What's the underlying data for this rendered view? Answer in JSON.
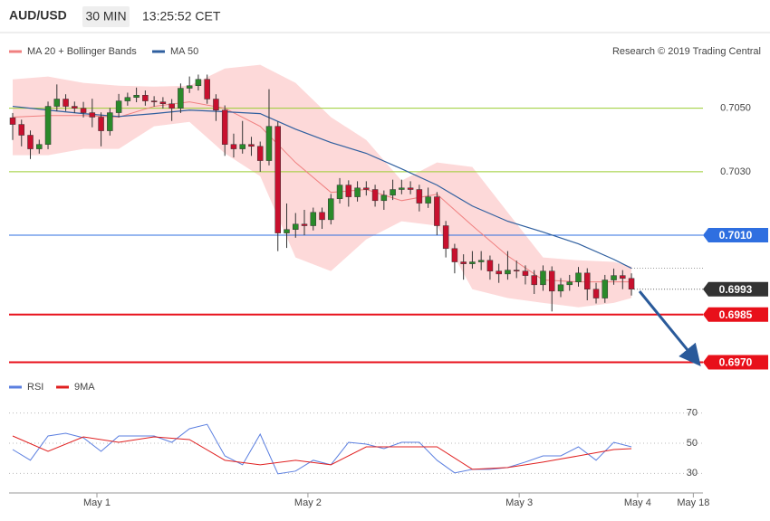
{
  "header": {
    "symbol": "AUD/USD",
    "interval": "30 MIN",
    "time": "13:25:52 CET"
  },
  "chart_data": [
    {
      "type": "candlestick",
      "source": "Research © 2019 Trading Central",
      "candles": {
        "open": [
          0.7047,
          0.70449,
          0.70415,
          0.70372,
          0.70386,
          0.70506,
          0.70529,
          0.70506,
          0.705,
          0.70486,
          0.70472,
          0.70429,
          0.70486,
          0.70523,
          0.70534,
          0.70541,
          0.70523,
          0.7052,
          0.70514,
          0.705,
          0.70563,
          0.70571,
          0.70591,
          0.70529,
          0.70494,
          0.70386,
          0.70372,
          0.70386,
          0.7038,
          0.70335,
          0.70443,
          0.70107,
          0.70118,
          0.70135,
          0.7013,
          0.70172,
          0.70149,
          0.70215,
          0.70258,
          0.70221,
          0.70249,
          0.70244,
          0.70209,
          0.70226,
          0.70244,
          0.70249,
          0.70244,
          0.70201,
          0.70221,
          0.7013,
          0.70058,
          0.70016,
          0.7001,
          0.70016,
          0.70021,
          0.69987,
          0.69978,
          0.6999,
          0.69987,
          0.69973,
          0.69944,
          0.69987,
          0.69924,
          0.69944,
          0.69953,
          0.69981,
          0.6993,
          0.69902,
          0.69959,
          0.69973,
          0.69964
        ],
        "high": [
          0.70485,
          0.70464,
          0.7043,
          0.70401,
          0.70521,
          0.70575,
          0.70544,
          0.70521,
          0.7052,
          0.7053,
          0.70487,
          0.70501,
          0.70545,
          0.70549,
          0.70565,
          0.70556,
          0.70538,
          0.70535,
          0.70529,
          0.70578,
          0.706,
          0.70606,
          0.70606,
          0.70544,
          0.70509,
          0.7042,
          0.7046,
          0.7041,
          0.70395,
          0.7056,
          0.70458,
          0.702,
          0.7017,
          0.7018,
          0.70187,
          0.70187,
          0.7023,
          0.7028,
          0.70273,
          0.7027,
          0.7027,
          0.70259,
          0.70241,
          0.70275,
          0.70275,
          0.7027,
          0.70259,
          0.7025,
          0.70236,
          0.70145,
          0.70073,
          0.7004,
          0.7005,
          0.7005,
          0.70036,
          0.7001,
          0.7005,
          0.7002,
          0.70005,
          0.6999,
          0.70005,
          0.70002,
          0.69965,
          0.69975,
          0.7,
          0.69996,
          0.6995,
          0.69975,
          0.69995,
          0.6999,
          0.6998
        ],
        "low": [
          0.704,
          0.7038,
          0.7034,
          0.70357,
          0.70371,
          0.70491,
          0.70491,
          0.70485,
          0.70471,
          0.7044,
          0.7038,
          0.70414,
          0.70471,
          0.70508,
          0.70519,
          0.70508,
          0.70505,
          0.70499,
          0.7046,
          0.70485,
          0.70548,
          0.70556,
          0.70514,
          0.7046,
          0.7035,
          0.70345,
          0.70357,
          0.7035,
          0.703,
          0.7032,
          0.7005,
          0.7006,
          0.70092,
          0.701,
          0.70115,
          0.7012,
          0.70134,
          0.702,
          0.7019,
          0.70206,
          0.70225,
          0.7019,
          0.7018,
          0.70211,
          0.70229,
          0.70229,
          0.70175,
          0.70186,
          0.701,
          0.7003,
          0.6998,
          0.6996,
          0.69995,
          0.6999,
          0.6996,
          0.6995,
          0.6996,
          0.69965,
          0.69945,
          0.69915,
          0.69925,
          0.6986,
          0.69905,
          0.69925,
          0.69938,
          0.69895,
          0.69885,
          0.69887,
          0.69944,
          0.6993,
          0.6991
        ],
        "close": [
          0.70449,
          0.70415,
          0.70372,
          0.70386,
          0.70506,
          0.70529,
          0.70506,
          0.705,
          0.70486,
          0.70472,
          0.70429,
          0.70486,
          0.70523,
          0.70534,
          0.70541,
          0.70523,
          0.7052,
          0.70514,
          0.705,
          0.70563,
          0.70571,
          0.70591,
          0.70529,
          0.70494,
          0.70386,
          0.70372,
          0.70386,
          0.7038,
          0.70335,
          0.70443,
          0.70107,
          0.70118,
          0.70135,
          0.7013,
          0.70172,
          0.70149,
          0.70215,
          0.70258,
          0.70221,
          0.70249,
          0.70244,
          0.70209,
          0.70226,
          0.70244,
          0.70249,
          0.70244,
          0.70201,
          0.70221,
          0.7013,
          0.70058,
          0.70016,
          0.7001,
          0.70016,
          0.70021,
          0.69987,
          0.69978,
          0.6999,
          0.69987,
          0.69973,
          0.69944,
          0.69987,
          0.69924,
          0.69944,
          0.69953,
          0.69981,
          0.6993,
          0.69902,
          0.69959,
          0.69973,
          0.69964,
          0.6993
        ],
        "up_color": "#2a8a2a",
        "down_color": "#c8102e"
      },
      "series": [
        {
          "name": "MA 20 + Bollinger Bands",
          "color": "#f08080",
          "band_color": "#fdd9d9",
          "x": [
            0,
            4,
            8,
            12,
            16,
            20,
            24,
            28,
            32,
            36,
            40,
            44,
            48,
            52,
            56,
            60,
            64,
            68,
            70
          ],
          "upper": [
            0.70591,
            0.706,
            0.7058,
            0.70571,
            0.70568,
            0.70571,
            0.70625,
            0.70637,
            0.7058,
            0.70472,
            0.704,
            0.70272,
            0.70329,
            0.70315,
            0.70172,
            0.7003,
            0.70021,
            0.70016,
            0.70001
          ],
          "values": [
            0.70472,
            0.70477,
            0.70477,
            0.70472,
            0.70506,
            0.7052,
            0.705,
            0.70443,
            0.70329,
            0.70235,
            0.70244,
            0.70209,
            0.70229,
            0.7013,
            0.70035,
            0.69959,
            0.69953,
            0.69953,
            0.69953
          ],
          "lower": [
            0.70352,
            0.70352,
            0.70372,
            0.70372,
            0.70443,
            0.70457,
            0.70358,
            0.70286,
            0.7003,
            0.69987,
            0.70087,
            0.70144,
            0.7013,
            0.6993,
            0.69902,
            0.69887,
            0.69873,
            0.69887,
            0.69902
          ]
        },
        {
          "name": "MA 50",
          "color": "#2f5f9f",
          "x": [
            0,
            4,
            8,
            12,
            16,
            20,
            24,
            28,
            32,
            36,
            40,
            44,
            48,
            52,
            56,
            60,
            64,
            68,
            70
          ],
          "values": [
            0.70506,
            0.70494,
            0.70483,
            0.70474,
            0.70483,
            0.70494,
            0.70489,
            0.70483,
            0.70434,
            0.70392,
            0.70358,
            0.70309,
            0.70258,
            0.70192,
            0.70144,
            0.7011,
            0.70073,
            0.70024,
            0.69996
          ]
        }
      ],
      "levels": [
        {
          "value": 0.705,
          "label": "0.7050",
          "color": "#9acd32",
          "kind": "text"
        },
        {
          "value": 0.703,
          "label": "0.7030",
          "color": "#9acd32",
          "kind": "text"
        },
        {
          "value": 0.701,
          "label": "0.7010",
          "color": "#2f6fe0",
          "kind": "tag"
        },
        {
          "value": 0.6985,
          "label": "0.6985",
          "color": "#e8101a",
          "kind": "tag"
        },
        {
          "value": 0.697,
          "label": "0.6970",
          "color": "#e8101a",
          "kind": "tag"
        }
      ],
      "last_price": {
        "value": 0.6993,
        "label": "0.6993",
        "color": "#333333"
      },
      "ylim": [
        0.6965,
        0.7067
      ],
      "xlim": [
        -0.41,
        78.5
      ],
      "xticks": [
        {
          "value": 9.53,
          "label": "May 1"
        },
        {
          "value": 33.4,
          "label": "May 2"
        },
        {
          "value": 57.3,
          "label": "May 3"
        },
        {
          "value": 70.7,
          "label": "May 4"
        },
        {
          "value": 77,
          "label": "May 18"
        }
      ]
    },
    {
      "type": "line",
      "series": [
        {
          "name": "RSI",
          "color": "#5b7fe0",
          "x": [
            0,
            2,
            4,
            6,
            8,
            10,
            12,
            14,
            16,
            18,
            20,
            22,
            24,
            26,
            28,
            30,
            32,
            34,
            36,
            38,
            40,
            42,
            44,
            46,
            48,
            50,
            52,
            54,
            56,
            58,
            60,
            62,
            64,
            66,
            68,
            70
          ],
          "values": [
            45.8,
            38.7,
            54.8,
            56.6,
            53.6,
            44.6,
            54.8,
            54.8,
            54.8,
            50.6,
            59.6,
            62.5,
            41.6,
            35.7,
            56,
            29.7,
            31.5,
            38.7,
            35.7,
            50.6,
            49.4,
            46.4,
            50.6,
            50.6,
            38.7,
            30.3,
            32.7,
            32.7,
            33.9,
            37.5,
            41.6,
            41.6,
            47.6,
            38.7,
            50.6,
            47.6
          ]
        },
        {
          "name": "9MA",
          "color": "#e02020",
          "x": [
            0,
            4,
            8,
            12,
            16,
            20,
            24,
            28,
            32,
            36,
            40,
            44,
            48,
            52,
            56,
            60,
            64,
            68,
            70
          ],
          "values": [
            54.8,
            44.6,
            54.2,
            50.6,
            54.2,
            52.4,
            38.7,
            35.7,
            38.7,
            35.7,
            47.6,
            47.6,
            47.6,
            32.7,
            33.9,
            37.5,
            41.6,
            45.8,
            46.4
          ]
        }
      ],
      "ylim": [
        20,
        80
      ],
      "yticks": [
        30,
        50,
        70
      ],
      "grid": true
    }
  ]
}
